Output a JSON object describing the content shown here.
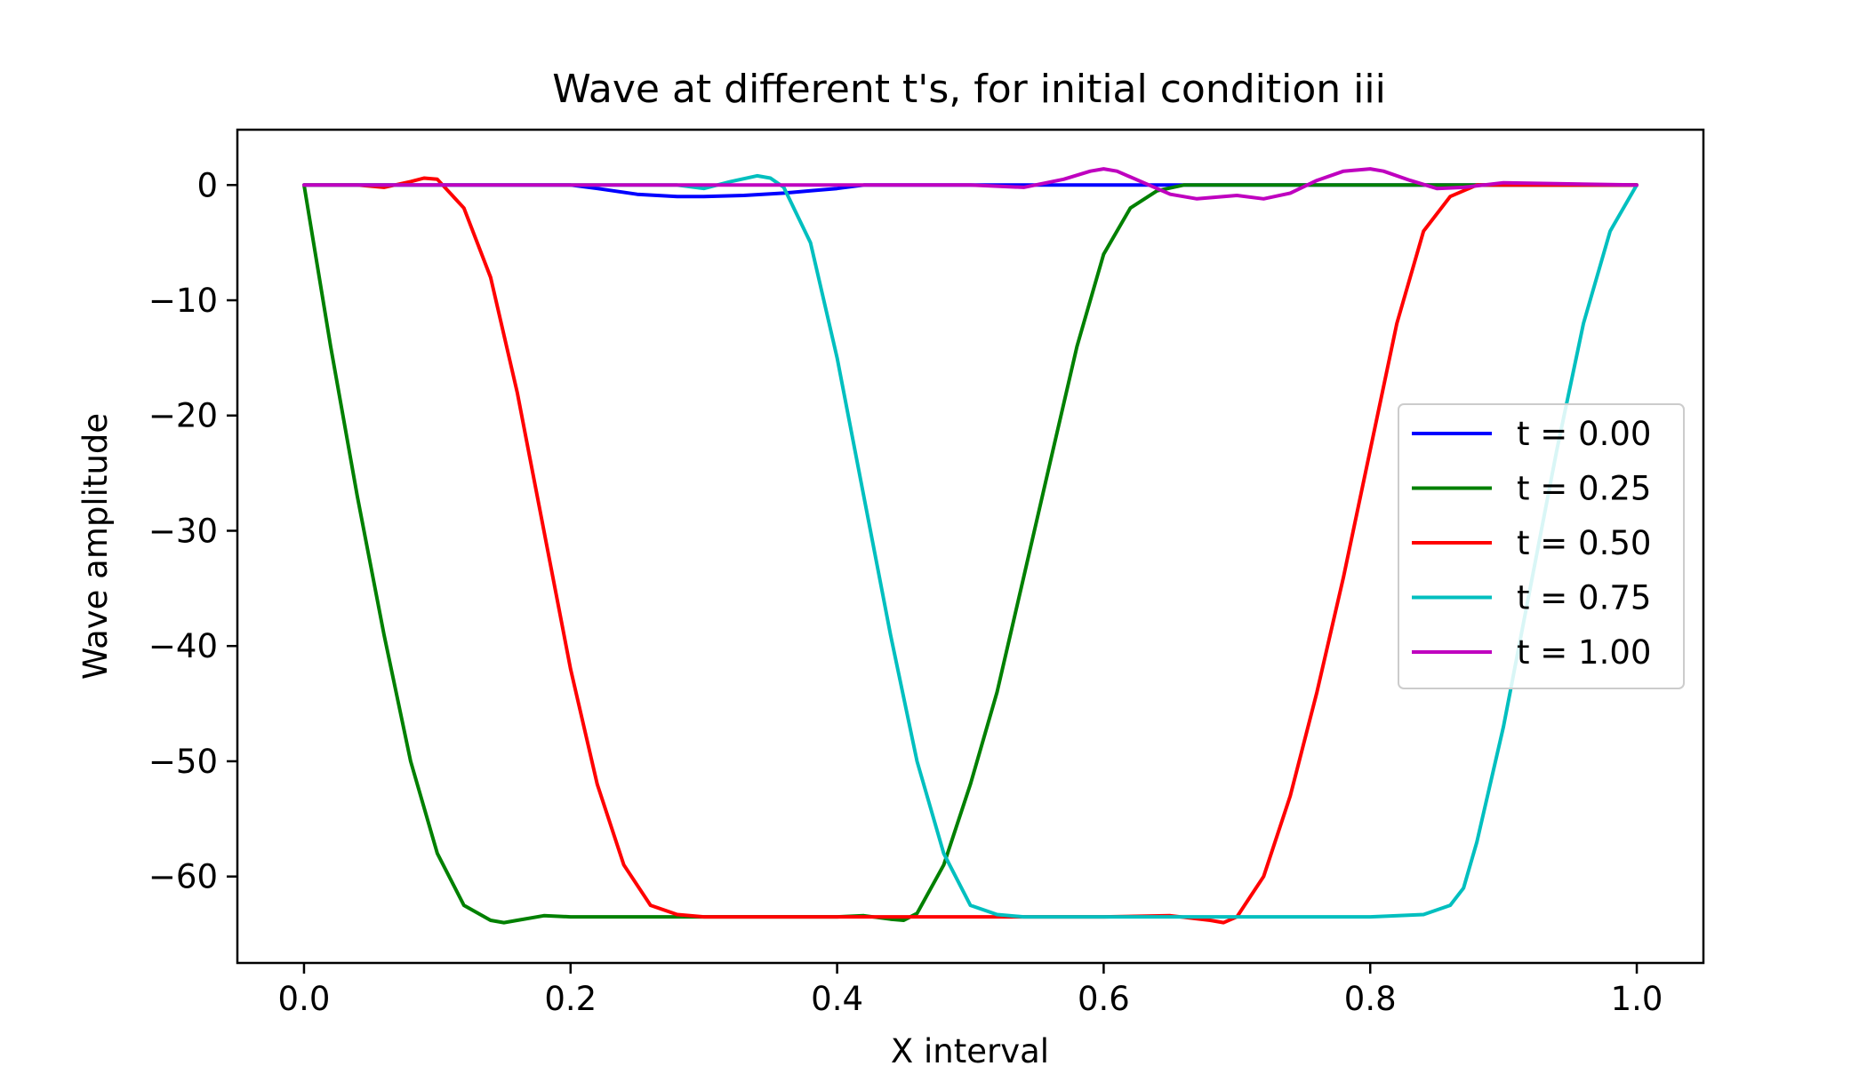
{
  "chart_data": {
    "type": "line",
    "title": "Wave at different t's, for initial condition iii",
    "xlabel": "X interval",
    "ylabel": "Wave amplitude",
    "xlim": [
      -0.05,
      1.05
    ],
    "ylim": [
      -67.5,
      4.8
    ],
    "xticks": [
      0.0,
      0.2,
      0.4,
      0.6,
      0.8,
      1.0
    ],
    "xtick_labels": [
      "0.0",
      "0.2",
      "0.4",
      "0.6",
      "0.8",
      "1.0"
    ],
    "yticks": [
      0,
      -10,
      -20,
      -30,
      -40,
      -50,
      -60
    ],
    "ytick_labels": [
      "0",
      "−10",
      "−20",
      "−30",
      "−40",
      "−50",
      "−60"
    ],
    "grid": false,
    "legend_position": "center-right",
    "series": [
      {
        "name": "t = 0.00",
        "color": "#0000ff",
        "x": [
          0.0,
          0.05,
          0.1,
          0.15,
          0.2,
          0.22,
          0.25,
          0.28,
          0.3,
          0.33,
          0.36,
          0.38,
          0.4,
          0.42,
          0.5,
          0.6,
          0.7,
          0.8,
          0.9,
          1.0
        ],
        "y": [
          0,
          0,
          0,
          0,
          0,
          -0.3,
          -0.8,
          -1.0,
          -1.0,
          -0.9,
          -0.7,
          -0.5,
          -0.3,
          0,
          0,
          0,
          0,
          0,
          0,
          0
        ]
      },
      {
        "name": "t = 0.25",
        "color": "#008000",
        "x": [
          0.0,
          0.02,
          0.04,
          0.06,
          0.08,
          0.1,
          0.12,
          0.14,
          0.15,
          0.16,
          0.18,
          0.2,
          0.25,
          0.3,
          0.35,
          0.4,
          0.42,
          0.44,
          0.45,
          0.46,
          0.48,
          0.5,
          0.52,
          0.54,
          0.56,
          0.58,
          0.6,
          0.62,
          0.64,
          0.66,
          0.68,
          0.7,
          0.8,
          0.9,
          1.0
        ],
        "y": [
          0,
          -14,
          -27,
          -39,
          -50,
          -58,
          -62.5,
          -63.8,
          -64,
          -63.8,
          -63.4,
          -63.5,
          -63.5,
          -63.5,
          -63.5,
          -63.5,
          -63.4,
          -63.7,
          -63.8,
          -63.2,
          -59,
          -52,
          -44,
          -34,
          -24,
          -14,
          -6,
          -2,
          -0.5,
          0,
          0,
          0,
          0,
          0,
          0
        ]
      },
      {
        "name": "t = 0.50",
        "color": "#ff0000",
        "x": [
          0.0,
          0.02,
          0.04,
          0.06,
          0.08,
          0.09,
          0.1,
          0.12,
          0.14,
          0.16,
          0.18,
          0.2,
          0.22,
          0.24,
          0.26,
          0.28,
          0.3,
          0.35,
          0.4,
          0.5,
          0.6,
          0.65,
          0.68,
          0.69,
          0.7,
          0.72,
          0.74,
          0.76,
          0.78,
          0.8,
          0.82,
          0.84,
          0.86,
          0.88,
          0.9,
          0.92,
          0.94,
          1.0
        ],
        "y": [
          0,
          0,
          0,
          -0.2,
          0.3,
          0.6,
          0.5,
          -2,
          -8,
          -18,
          -30,
          -42,
          -52,
          -59,
          -62.5,
          -63.3,
          -63.5,
          -63.5,
          -63.5,
          -63.5,
          -63.5,
          -63.4,
          -63.8,
          -64,
          -63.5,
          -60,
          -53,
          -44,
          -34,
          -23,
          -12,
          -4,
          -1,
          0,
          0,
          0,
          0,
          0
        ]
      },
      {
        "name": "t = 0.75",
        "color": "#00bfbf",
        "x": [
          0.0,
          0.05,
          0.1,
          0.2,
          0.25,
          0.28,
          0.3,
          0.32,
          0.34,
          0.35,
          0.36,
          0.38,
          0.4,
          0.42,
          0.44,
          0.46,
          0.48,
          0.5,
          0.52,
          0.54,
          0.56,
          0.58,
          0.6,
          0.65,
          0.7,
          0.75,
          0.8,
          0.84,
          0.86,
          0.87,
          0.88,
          0.9,
          0.92,
          0.94,
          0.96,
          0.98,
          1.0
        ],
        "y": [
          0,
          0,
          0,
          0,
          0,
          0,
          -0.3,
          0.3,
          0.8,
          0.6,
          -0.2,
          -5,
          -15,
          -27,
          -39,
          -50,
          -58,
          -62.5,
          -63.3,
          -63.5,
          -63.5,
          -63.5,
          -63.5,
          -63.5,
          -63.5,
          -63.5,
          -63.5,
          -63.3,
          -62.5,
          -61,
          -57,
          -47,
          -35,
          -23,
          -12,
          -4,
          0
        ]
      },
      {
        "name": "t = 1.00",
        "color": "#bf00bf",
        "x": [
          0.0,
          0.1,
          0.2,
          0.3,
          0.4,
          0.5,
          0.54,
          0.57,
          0.59,
          0.6,
          0.61,
          0.63,
          0.65,
          0.67,
          0.7,
          0.72,
          0.74,
          0.76,
          0.78,
          0.8,
          0.81,
          0.83,
          0.85,
          0.87,
          0.9,
          1.0
        ],
        "y": [
          0,
          0,
          0,
          0,
          0,
          0,
          -0.2,
          0.5,
          1.2,
          1.4,
          1.2,
          0.2,
          -0.8,
          -1.2,
          -0.9,
          -1.2,
          -0.7,
          0.4,
          1.2,
          1.4,
          1.2,
          0.4,
          -0.3,
          -0.2,
          0.2,
          0
        ]
      }
    ]
  }
}
